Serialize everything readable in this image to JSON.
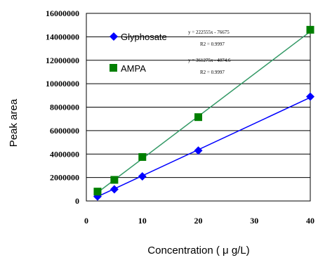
{
  "chart_data": {
    "type": "scatter",
    "xlabel": "Concentration ( μ g/L)",
    "ylabel": "Peak area",
    "xlim": [
      0,
      40
    ],
    "ylim": [
      0,
      16000000
    ],
    "x_ticks": [
      "0",
      "10",
      "20",
      "30",
      "40"
    ],
    "y_ticks": [
      "0",
      "2000000",
      "4000000",
      "6000000",
      "8000000",
      "10000000",
      "12000000",
      "14000000",
      "16000000"
    ],
    "grid": "horizontal",
    "legend_position": "upper-left",
    "series": [
      {
        "name": "Glyphosate",
        "marker": "diamond",
        "color": "#0000ff",
        "line_color": "#0000ff",
        "x": [
          2,
          5,
          10,
          20,
          40
        ],
        "y": [
          380000,
          1000000,
          2100000,
          4300000,
          8900000
        ],
        "trendline": {
          "slope": 222555,
          "intercept": -76675
        },
        "equation": "y = 222555x - 76675",
        "r2": "R2 = 0.9997"
      },
      {
        "name": "AMPA",
        "marker": "square",
        "color": "#007f00",
        "line_color": "#339966",
        "x": [
          2,
          5,
          10,
          20,
          40
        ],
        "y": [
          800000,
          1800000,
          3750000,
          7150000,
          14600000
        ],
        "trendline": {
          "slope": 361275,
          "intercept": -4074.6
        },
        "equation": "y = 361275x - 4074.6",
        "r2": "R2 = 0.9997"
      }
    ]
  }
}
